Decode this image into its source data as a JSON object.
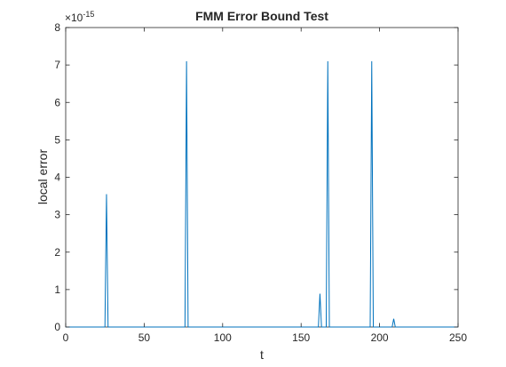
{
  "chart_data": {
    "type": "line",
    "title": "FMM Error Bound Test",
    "xlabel": "t",
    "ylabel": "local error",
    "exponent_label": "×10",
    "exponent_power": "-15",
    "y_scale_exponent": -15,
    "xlim": [
      0,
      250
    ],
    "ylim": [
      0,
      8
    ],
    "x_ticks": [
      0,
      50,
      100,
      150,
      200,
      250
    ],
    "y_ticks": [
      0,
      1,
      2,
      3,
      4,
      5,
      6,
      7,
      8
    ],
    "grid": false,
    "series": [
      {
        "color": "#0072bd",
        "x": [
          0,
          25,
          26,
          27,
          76,
          77,
          78,
          161,
          162,
          163,
          166,
          167,
          168,
          194,
          195,
          196,
          208,
          209,
          210,
          250
        ],
        "y": [
          0,
          0,
          3.55,
          0,
          0,
          7.1,
          0,
          0,
          0.89,
          0,
          0,
          7.1,
          0,
          0,
          7.1,
          0,
          0,
          0.22,
          0,
          0
        ]
      }
    ]
  }
}
